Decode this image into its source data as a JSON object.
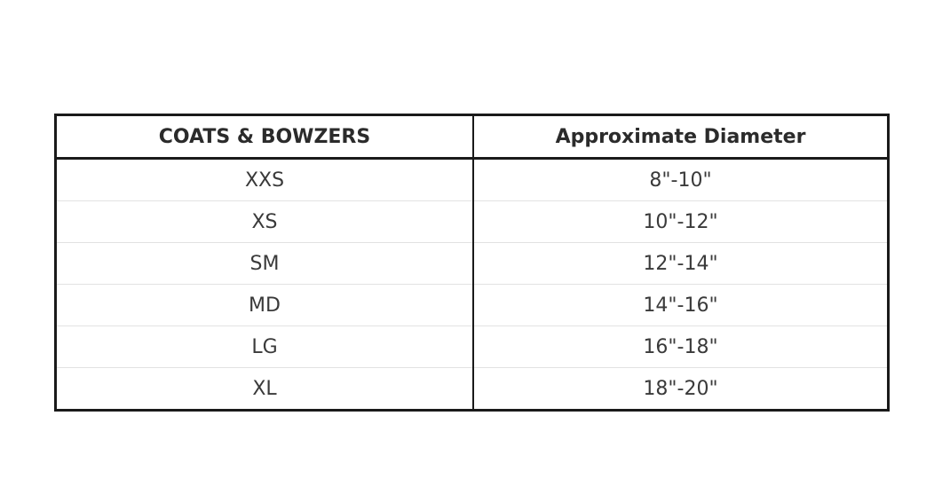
{
  "table": {
    "headers": [
      "COATS & BOWZERS",
      "Approximate Diameter"
    ],
    "rows": [
      [
        "XXS",
        "8\"-10\""
      ],
      [
        "XS",
        "10\"-12\""
      ],
      [
        "SM",
        "12\"-14\""
      ],
      [
        "MD",
        "14\"-16\""
      ],
      [
        "LG",
        "16\"-18\""
      ],
      [
        "XL",
        "18\"-20\""
      ]
    ]
  }
}
